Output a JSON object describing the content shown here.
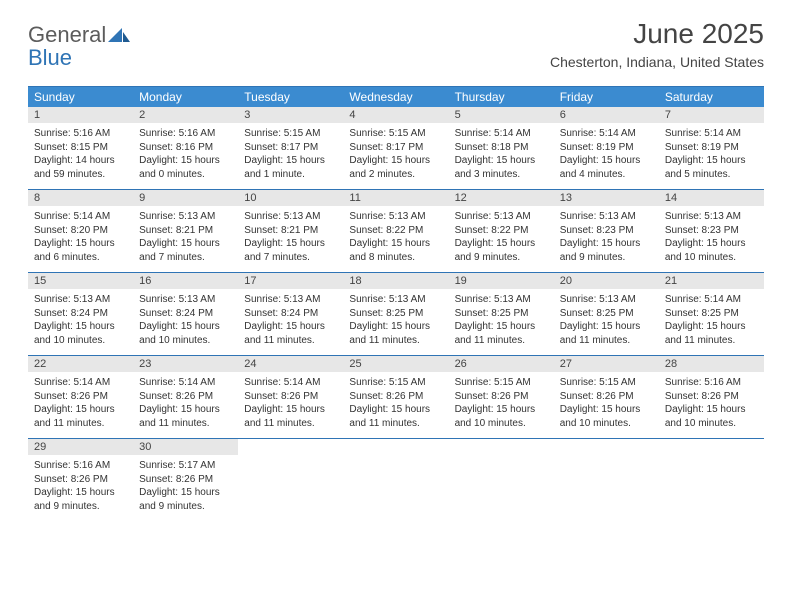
{
  "brand": {
    "word1": "General",
    "word2": "Blue"
  },
  "title": "June 2025",
  "location": "Chesterton, Indiana, United States",
  "colors": {
    "header_bg": "#3b8bd0",
    "header_text": "#ffffff",
    "rule": "#2f74b5",
    "daynum_bg": "#e7e7e7",
    "text": "#333333",
    "logo_gray": "#5c5c5c",
    "logo_blue": "#2f74b5"
  },
  "typography": {
    "title_fontsize": 28,
    "location_fontsize": 14,
    "dow_fontsize": 12,
    "daynum_fontsize": 11,
    "info_fontsize": 10
  },
  "calendar": {
    "type": "table",
    "dow": [
      "Sunday",
      "Monday",
      "Tuesday",
      "Wednesday",
      "Thursday",
      "Friday",
      "Saturday"
    ],
    "weeks": [
      [
        {
          "n": "1",
          "sunrise": "Sunrise: 5:16 AM",
          "sunset": "Sunset: 8:15 PM",
          "daylight": "Daylight: 14 hours and 59 minutes."
        },
        {
          "n": "2",
          "sunrise": "Sunrise: 5:16 AM",
          "sunset": "Sunset: 8:16 PM",
          "daylight": "Daylight: 15 hours and 0 minutes."
        },
        {
          "n": "3",
          "sunrise": "Sunrise: 5:15 AM",
          "sunset": "Sunset: 8:17 PM",
          "daylight": "Daylight: 15 hours and 1 minute."
        },
        {
          "n": "4",
          "sunrise": "Sunrise: 5:15 AM",
          "sunset": "Sunset: 8:17 PM",
          "daylight": "Daylight: 15 hours and 2 minutes."
        },
        {
          "n": "5",
          "sunrise": "Sunrise: 5:14 AM",
          "sunset": "Sunset: 8:18 PM",
          "daylight": "Daylight: 15 hours and 3 minutes."
        },
        {
          "n": "6",
          "sunrise": "Sunrise: 5:14 AM",
          "sunset": "Sunset: 8:19 PM",
          "daylight": "Daylight: 15 hours and 4 minutes."
        },
        {
          "n": "7",
          "sunrise": "Sunrise: 5:14 AM",
          "sunset": "Sunset: 8:19 PM",
          "daylight": "Daylight: 15 hours and 5 minutes."
        }
      ],
      [
        {
          "n": "8",
          "sunrise": "Sunrise: 5:14 AM",
          "sunset": "Sunset: 8:20 PM",
          "daylight": "Daylight: 15 hours and 6 minutes."
        },
        {
          "n": "9",
          "sunrise": "Sunrise: 5:13 AM",
          "sunset": "Sunset: 8:21 PM",
          "daylight": "Daylight: 15 hours and 7 minutes."
        },
        {
          "n": "10",
          "sunrise": "Sunrise: 5:13 AM",
          "sunset": "Sunset: 8:21 PM",
          "daylight": "Daylight: 15 hours and 7 minutes."
        },
        {
          "n": "11",
          "sunrise": "Sunrise: 5:13 AM",
          "sunset": "Sunset: 8:22 PM",
          "daylight": "Daylight: 15 hours and 8 minutes."
        },
        {
          "n": "12",
          "sunrise": "Sunrise: 5:13 AM",
          "sunset": "Sunset: 8:22 PM",
          "daylight": "Daylight: 15 hours and 9 minutes."
        },
        {
          "n": "13",
          "sunrise": "Sunrise: 5:13 AM",
          "sunset": "Sunset: 8:23 PM",
          "daylight": "Daylight: 15 hours and 9 minutes."
        },
        {
          "n": "14",
          "sunrise": "Sunrise: 5:13 AM",
          "sunset": "Sunset: 8:23 PM",
          "daylight": "Daylight: 15 hours and 10 minutes."
        }
      ],
      [
        {
          "n": "15",
          "sunrise": "Sunrise: 5:13 AM",
          "sunset": "Sunset: 8:24 PM",
          "daylight": "Daylight: 15 hours and 10 minutes."
        },
        {
          "n": "16",
          "sunrise": "Sunrise: 5:13 AM",
          "sunset": "Sunset: 8:24 PM",
          "daylight": "Daylight: 15 hours and 10 minutes."
        },
        {
          "n": "17",
          "sunrise": "Sunrise: 5:13 AM",
          "sunset": "Sunset: 8:24 PM",
          "daylight": "Daylight: 15 hours and 11 minutes."
        },
        {
          "n": "18",
          "sunrise": "Sunrise: 5:13 AM",
          "sunset": "Sunset: 8:25 PM",
          "daylight": "Daylight: 15 hours and 11 minutes."
        },
        {
          "n": "19",
          "sunrise": "Sunrise: 5:13 AM",
          "sunset": "Sunset: 8:25 PM",
          "daylight": "Daylight: 15 hours and 11 minutes."
        },
        {
          "n": "20",
          "sunrise": "Sunrise: 5:13 AM",
          "sunset": "Sunset: 8:25 PM",
          "daylight": "Daylight: 15 hours and 11 minutes."
        },
        {
          "n": "21",
          "sunrise": "Sunrise: 5:14 AM",
          "sunset": "Sunset: 8:25 PM",
          "daylight": "Daylight: 15 hours and 11 minutes."
        }
      ],
      [
        {
          "n": "22",
          "sunrise": "Sunrise: 5:14 AM",
          "sunset": "Sunset: 8:26 PM",
          "daylight": "Daylight: 15 hours and 11 minutes."
        },
        {
          "n": "23",
          "sunrise": "Sunrise: 5:14 AM",
          "sunset": "Sunset: 8:26 PM",
          "daylight": "Daylight: 15 hours and 11 minutes."
        },
        {
          "n": "24",
          "sunrise": "Sunrise: 5:14 AM",
          "sunset": "Sunset: 8:26 PM",
          "daylight": "Daylight: 15 hours and 11 minutes."
        },
        {
          "n": "25",
          "sunrise": "Sunrise: 5:15 AM",
          "sunset": "Sunset: 8:26 PM",
          "daylight": "Daylight: 15 hours and 11 minutes."
        },
        {
          "n": "26",
          "sunrise": "Sunrise: 5:15 AM",
          "sunset": "Sunset: 8:26 PM",
          "daylight": "Daylight: 15 hours and 10 minutes."
        },
        {
          "n": "27",
          "sunrise": "Sunrise: 5:15 AM",
          "sunset": "Sunset: 8:26 PM",
          "daylight": "Daylight: 15 hours and 10 minutes."
        },
        {
          "n": "28",
          "sunrise": "Sunrise: 5:16 AM",
          "sunset": "Sunset: 8:26 PM",
          "daylight": "Daylight: 15 hours and 10 minutes."
        }
      ],
      [
        {
          "n": "29",
          "sunrise": "Sunrise: 5:16 AM",
          "sunset": "Sunset: 8:26 PM",
          "daylight": "Daylight: 15 hours and 9 minutes."
        },
        {
          "n": "30",
          "sunrise": "Sunrise: 5:17 AM",
          "sunset": "Sunset: 8:26 PM",
          "daylight": "Daylight: 15 hours and 9 minutes."
        },
        null,
        null,
        null,
        null,
        null
      ]
    ]
  }
}
